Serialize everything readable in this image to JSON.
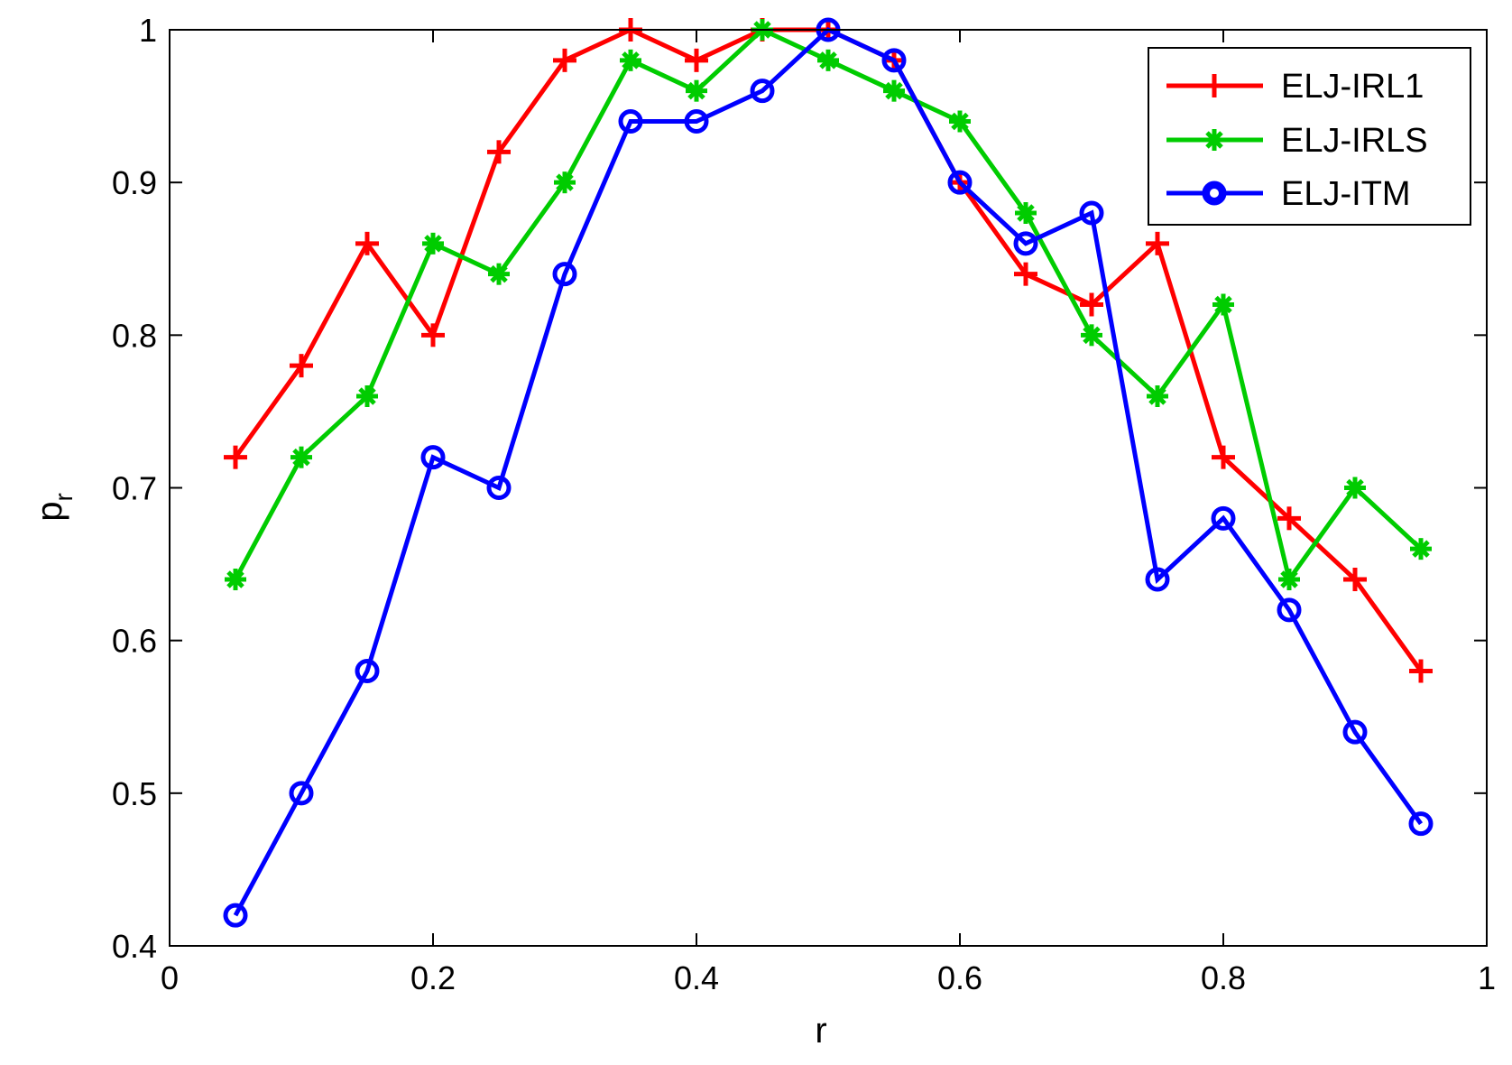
{
  "chart_data": {
    "type": "line",
    "title": "",
    "xlabel": "r",
    "ylabel_main": "p",
    "ylabel_sub": "r",
    "xlim": [
      0,
      1
    ],
    "ylim": [
      0.4,
      1
    ],
    "xticks": [
      0,
      0.2,
      0.4,
      0.6,
      0.8,
      1
    ],
    "xtick_labels": [
      "0",
      "0.2",
      "0.4",
      "0.6",
      "0.8",
      "1"
    ],
    "yticks": [
      0.4,
      0.5,
      0.6,
      0.7,
      0.8,
      0.9,
      1
    ],
    "ytick_labels": [
      "0.4",
      "0.5",
      "0.6",
      "0.7",
      "0.8",
      "0.9",
      "1"
    ],
    "grid": false,
    "legend_position": "top-right",
    "x": [
      0.05,
      0.1,
      0.15,
      0.2,
      0.25,
      0.3,
      0.35,
      0.4,
      0.45,
      0.5,
      0.55,
      0.6,
      0.65,
      0.7,
      0.75,
      0.8,
      0.85,
      0.9,
      0.95
    ],
    "series": [
      {
        "name": "ELJ-IRL1",
        "color": "#ff0000",
        "marker": "plus",
        "values": [
          0.72,
          0.78,
          0.86,
          0.8,
          0.92,
          0.98,
          1.0,
          0.98,
          1.0,
          1.0,
          0.98,
          0.9,
          0.84,
          0.82,
          0.86,
          0.72,
          0.68,
          0.64,
          0.58
        ]
      },
      {
        "name": "ELJ-IRLS",
        "color": "#00cc00",
        "marker": "star",
        "values": [
          0.64,
          0.72,
          0.76,
          0.86,
          0.84,
          0.9,
          0.98,
          0.96,
          1.0,
          0.98,
          0.96,
          0.94,
          0.88,
          0.8,
          0.76,
          0.82,
          0.64,
          0.7,
          0.66
        ]
      },
      {
        "name": "ELJ-ITM",
        "color": "#0000ff",
        "marker": "circle",
        "values": [
          0.42,
          0.5,
          0.58,
          0.72,
          0.7,
          0.84,
          0.94,
          0.94,
          0.96,
          1.0,
          0.98,
          0.9,
          0.86,
          0.88,
          0.64,
          0.68,
          0.62,
          0.54,
          0.48
        ]
      }
    ]
  }
}
